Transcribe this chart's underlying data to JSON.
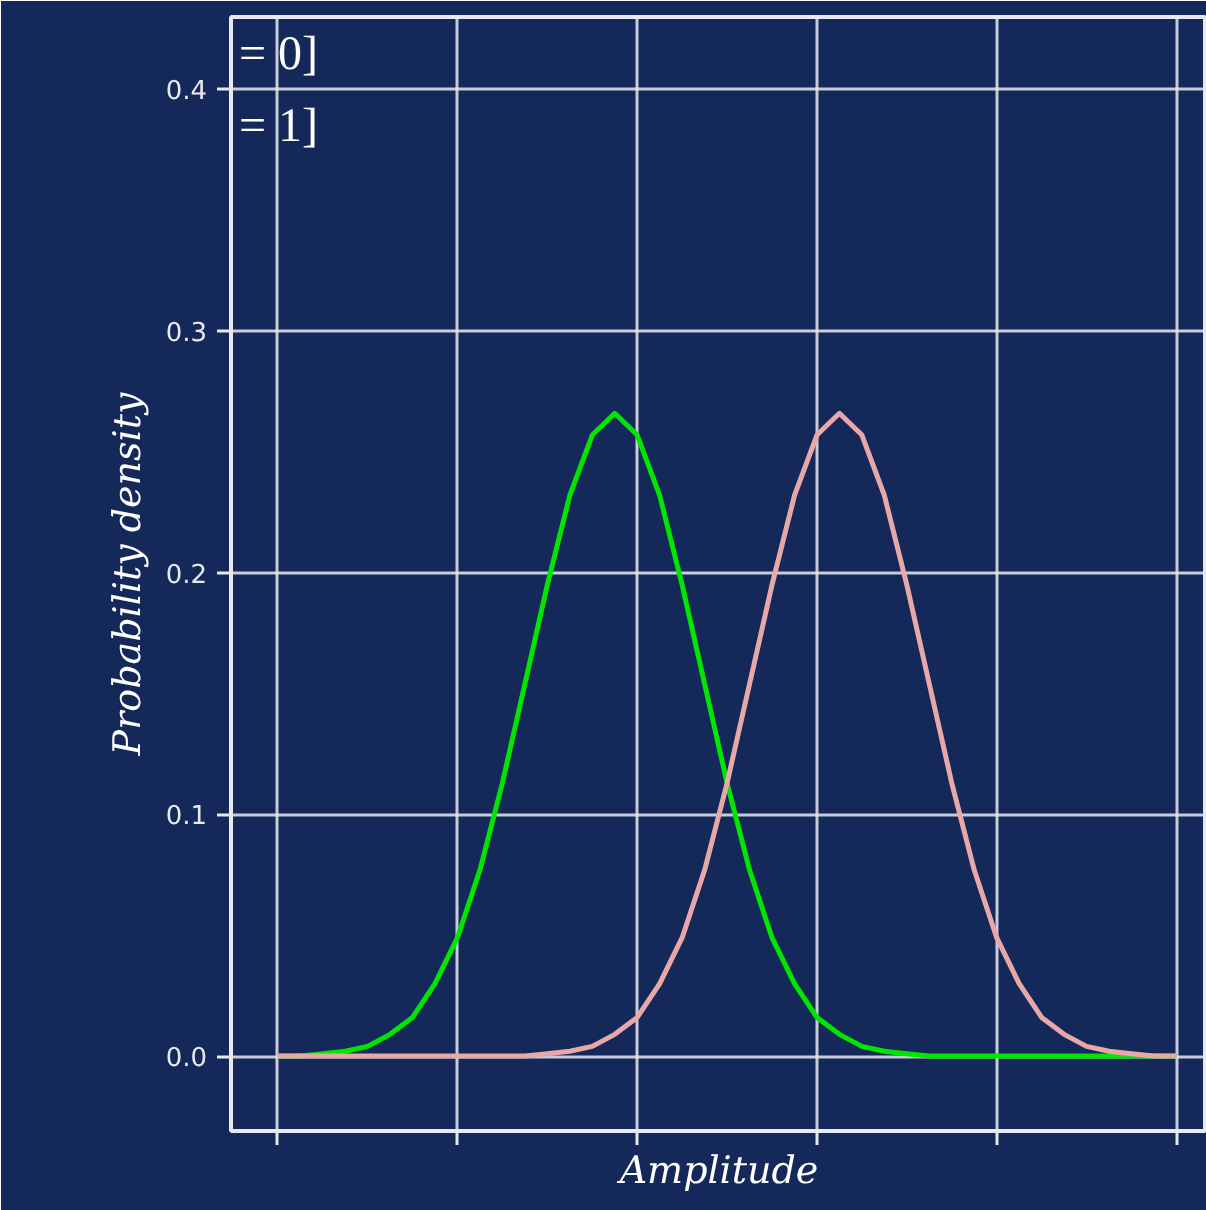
{
  "chart_data": {
    "type": "line",
    "xlabel": "Amplitude",
    "ylabel": "Probability density",
    "annotations": [
      "= 0]",
      "= 1]"
    ],
    "categories": [
      null,
      null,
      null,
      null,
      null,
      null,
      null,
      null,
      null,
      null,
      null,
      null,
      null,
      null,
      null,
      null,
      null,
      null,
      null,
      null,
      null,
      null,
      null,
      null,
      null,
      null,
      null,
      null,
      null,
      null,
      null,
      null,
      null,
      null,
      null,
      null,
      null,
      null,
      null,
      null,
      null
    ],
    "ylim": [
      -0.031,
      0.43
    ],
    "yticks": [
      {
        "value": 0,
        "label": "0.0"
      },
      {
        "value": 0.1,
        "label": "0.1"
      },
      {
        "value": 0.2,
        "label": "0.2"
      },
      {
        "value": 0.3,
        "label": "0.3"
      },
      {
        "value": 0.4,
        "label": "0.4"
      }
    ],
    "grid": true,
    "marker": "none",
    "line_style": "solid",
    "series": [
      {
        "color": "#00e600",
        "values": [
          0,
          0,
          0.001,
          0.002,
          0.004,
          0.009,
          0.016,
          0.03,
          0.049,
          0.077,
          0.113,
          0.154,
          0.195,
          0.232,
          0.257,
          0.266,
          0.257,
          0.232,
          0.195,
          0.154,
          0.113,
          0.077,
          0.049,
          0.03,
          0.016,
          0.009,
          0.004,
          0.002,
          0.001,
          0,
          0,
          0,
          0,
          0,
          0,
          0,
          0,
          0,
          0,
          0,
          0
        ]
      },
      {
        "color": "#e8a8a8",
        "values": [
          0,
          0,
          0,
          0,
          0,
          0,
          0,
          0,
          0,
          0,
          0,
          0,
          0.001,
          0.002,
          0.004,
          0.009,
          0.016,
          0.03,
          0.049,
          0.077,
          0.113,
          0.154,
          0.195,
          0.232,
          0.257,
          0.266,
          0.257,
          0.232,
          0.195,
          0.154,
          0.113,
          0.077,
          0.049,
          0.03,
          0.016,
          0.009,
          0.004,
          0.002,
          0.001,
          0,
          0
        ]
      }
    ]
  }
}
